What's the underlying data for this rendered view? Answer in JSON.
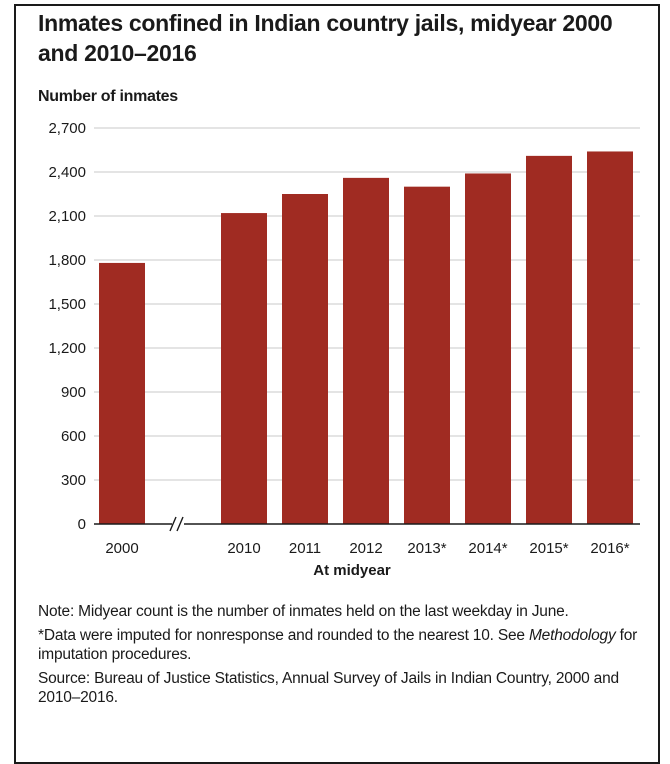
{
  "chart_data": {
    "type": "bar",
    "title": "Inmates confined in Indian country jails, midyear 2000 and 2010–2016",
    "ylabel": "Number of inmates",
    "xlabel": "At midyear",
    "categories": [
      "2000",
      "2010",
      "2011",
      "2012",
      "2013*",
      "2014*",
      "2015*",
      "2016*"
    ],
    "values": [
      1780,
      2120,
      2250,
      2360,
      2300,
      2390,
      2510,
      2540
    ],
    "ylim": [
      0,
      2700
    ],
    "yticks": [
      "0",
      "300",
      "600",
      "900",
      "1,200",
      "1,500",
      "1,800",
      "2,100",
      "2,400",
      "2,700"
    ],
    "axis_break": "//",
    "bar_color": "#a02b22",
    "grid": true,
    "legend": "none"
  },
  "notes": {
    "note": "Note: Midyear count is the number of inmates held on the last weekday in June.",
    "imputed_a": "*Data were imputed for nonresponse and rounded to the nearest 10. See ",
    "imputed_italic": "Methodology",
    "imputed_b": " for imputation procedures.",
    "source": "Source: Bureau of Justice Statistics, Annual Survey of Jails in Indian Country, 2000 and 2010–2016."
  }
}
